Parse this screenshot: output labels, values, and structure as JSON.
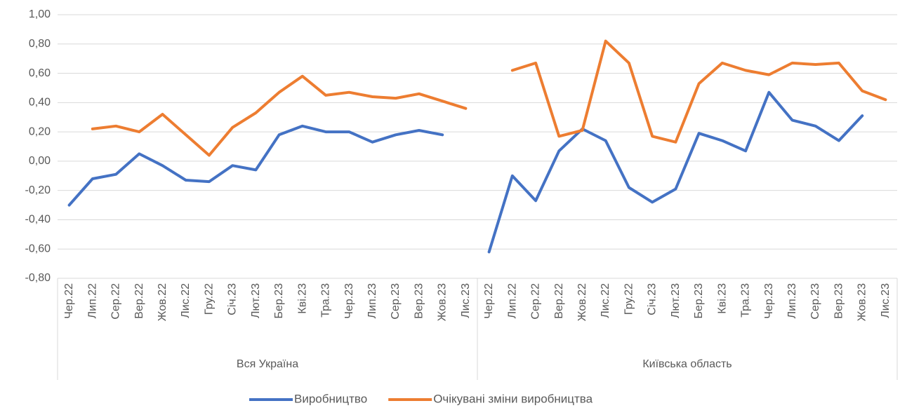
{
  "chart_data": {
    "type": "line",
    "category_groups": [
      {
        "name": "Вся Україна",
        "categories": [
          "Чер.22",
          "Лип.22",
          "Сер.22",
          "Вер.22",
          "Жов.22",
          "Лис.22",
          "Гру.22",
          "Січ.23",
          "Лют.23",
          "Бер.23",
          "Кві.23",
          "Тра.23",
          "Чер.23",
          "Лип.23",
          "Сер.23",
          "Вер.23",
          "Жов.23",
          "Лис.23"
        ]
      },
      {
        "name": "Київська область",
        "categories": [
          "Чер.22",
          "Лип.22",
          "Сер.22",
          "Вер.22",
          "Жов.22",
          "Лис.22",
          "Гру.22",
          "Січ.23",
          "Лют.23",
          "Бер.23",
          "Кві.23",
          "Тра.23",
          "Чер.23",
          "Лип.23",
          "Сер.23",
          "Вер.23",
          "Жов.23",
          "Лис.23"
        ]
      }
    ],
    "series": [
      {
        "name": "Виробництво",
        "color": "#4472c4",
        "values": [
          -0.3,
          -0.12,
          -0.09,
          0.05,
          -0.03,
          -0.13,
          -0.14,
          -0.03,
          -0.06,
          0.18,
          0.24,
          0.2,
          0.2,
          0.13,
          0.18,
          0.21,
          0.18,
          null,
          -0.62,
          -0.1,
          -0.27,
          0.07,
          0.22,
          0.14,
          -0.18,
          -0.28,
          -0.19,
          0.19,
          0.14,
          0.07,
          0.47,
          0.28,
          0.24,
          0.14,
          0.31,
          null
        ]
      },
      {
        "name": "Очікувані зміни виробництва",
        "color": "#ed7d31",
        "values": [
          null,
          0.22,
          0.24,
          0.2,
          0.32,
          0.18,
          0.04,
          0.23,
          0.33,
          0.47,
          0.58,
          0.45,
          0.47,
          0.44,
          0.43,
          0.46,
          0.41,
          0.36,
          null,
          0.62,
          0.67,
          0.17,
          0.21,
          0.82,
          0.67,
          0.17,
          0.13,
          0.53,
          0.67,
          0.62,
          0.59,
          0.67,
          0.66,
          0.67,
          0.48,
          0.42
        ]
      }
    ],
    "ylim": [
      -0.8,
      1.0
    ],
    "yticks": [
      {
        "value": -0.8,
        "label": "-0,80"
      },
      {
        "value": -0.6,
        "label": "-0,60"
      },
      {
        "value": -0.4,
        "label": "-0,40"
      },
      {
        "value": -0.2,
        "label": "-0,20"
      },
      {
        "value": 0,
        "label": "0,00"
      },
      {
        "value": 0.2,
        "label": "0,20"
      },
      {
        "value": 0.4,
        "label": "0,40"
      },
      {
        "value": 0.6,
        "label": "0,60"
      },
      {
        "value": 0.8,
        "label": "0,80"
      },
      {
        "value": 1.0,
        "label": "1,00"
      }
    ],
    "grid": true,
    "legend": "bottom"
  }
}
